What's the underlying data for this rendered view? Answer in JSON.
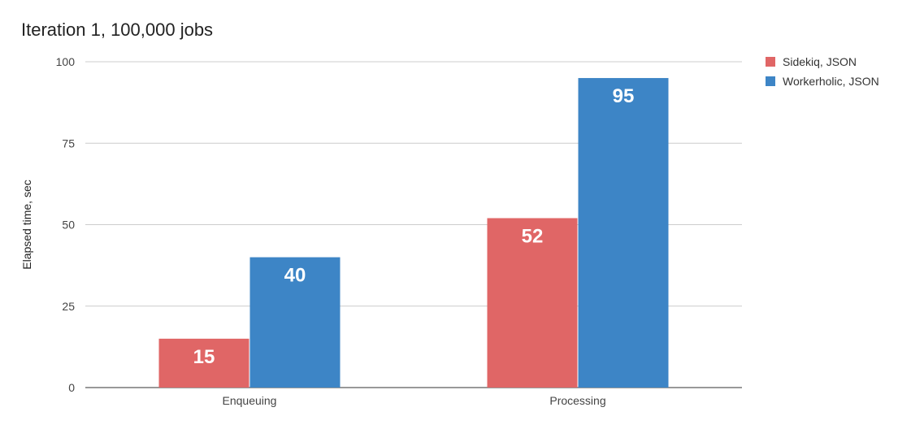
{
  "chart_data": {
    "type": "bar",
    "title": "Iteration 1, 100,000 jobs",
    "xlabel": "",
    "ylabel": "Elapsed time, sec",
    "categories": [
      "Enqueuing",
      "Processing"
    ],
    "ylim": [
      0,
      100
    ],
    "yticks": [
      0,
      25,
      50,
      75,
      100
    ],
    "grid": true,
    "legend_position": "top-right",
    "data_labels": true,
    "series": [
      {
        "name": "Sidekiq, JSON",
        "color": "#e06666",
        "values": [
          15,
          52
        ]
      },
      {
        "name": "Workerholic, JSON",
        "color": "#3d85c6",
        "values": [
          40,
          95
        ]
      }
    ]
  }
}
